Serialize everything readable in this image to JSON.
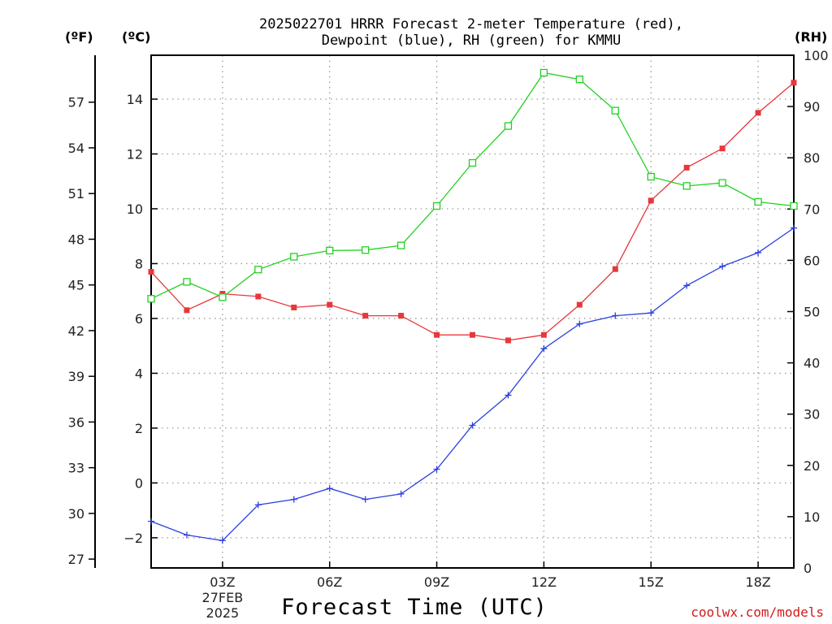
{
  "title_line1": "2025022701 HRRR Forecast 2-meter Temperature (red),",
  "title_line2": "Dewpoint (blue), RH (green) for KMMU",
  "unit_f": "(ºF)",
  "unit_c": "(ºC)",
  "unit_rh": "(RH)",
  "credit": "coolwx.com/models",
  "chart_data": {
    "type": "line",
    "title": "2025022701 HRRR Forecast 2-meter Temperature (red), Dewpoint (blue), RH (green) for KMMU",
    "xlabel": "Forecast Time (UTC)",
    "x_hours": [
      1,
      2,
      3,
      4,
      5,
      6,
      7,
      8,
      9,
      10,
      11,
      12,
      13,
      14,
      15,
      16,
      17,
      18,
      19
    ],
    "x_ticks": [
      {
        "hour": 3,
        "label": "03Z",
        "sub": [
          "27FEB",
          "2025"
        ]
      },
      {
        "hour": 6,
        "label": "06Z"
      },
      {
        "hour": 9,
        "label": "09Z"
      },
      {
        "hour": 12,
        "label": "12Z"
      },
      {
        "hour": 15,
        "label": "15Z"
      },
      {
        "hour": 18,
        "label": "18Z"
      }
    ],
    "xlim": [
      1,
      19
    ],
    "ylim_c": [
      -3.1,
      15.6
    ],
    "y_ticks_c": [
      -2,
      0,
      2,
      4,
      6,
      8,
      10,
      12,
      14
    ],
    "y_ticks_f": [
      27,
      30,
      33,
      36,
      39,
      42,
      45,
      48,
      51,
      54,
      57
    ],
    "ylim_rh": [
      0,
      100
    ],
    "y_ticks_rh": [
      0,
      10,
      20,
      30,
      40,
      50,
      60,
      70,
      80,
      90,
      100
    ],
    "grid": true,
    "series": [
      {
        "name": "Temperature",
        "color": "#e8373b",
        "marker": "filled-square",
        "axis": "c",
        "values": [
          7.7,
          6.3,
          6.9,
          6.8,
          6.4,
          6.5,
          6.1,
          6.1,
          5.4,
          5.4,
          5.2,
          5.4,
          6.5,
          7.8,
          10.3,
          11.5,
          12.2,
          13.5,
          14.6
        ]
      },
      {
        "name": "Dewpoint",
        "color": "#2c3fe0",
        "marker": "plus",
        "axis": "c",
        "values": [
          -1.4,
          -1.9,
          -2.1,
          -0.8,
          -0.6,
          -0.2,
          -0.6,
          -0.4,
          0.5,
          2.1,
          3.2,
          4.9,
          5.8,
          6.1,
          6.2,
          7.2,
          7.9,
          8.4,
          9.3
        ]
      },
      {
        "name": "RH",
        "color": "#22d022",
        "marker": "open-square",
        "axis": "rh",
        "values": [
          52.5,
          55.8,
          52.8,
          58.2,
          60.7,
          61.9,
          62.0,
          62.9,
          70.6,
          79.0,
          86.2,
          96.6,
          95.3,
          89.2,
          76.3,
          74.5,
          75.1,
          71.4,
          70.6
        ]
      }
    ]
  }
}
